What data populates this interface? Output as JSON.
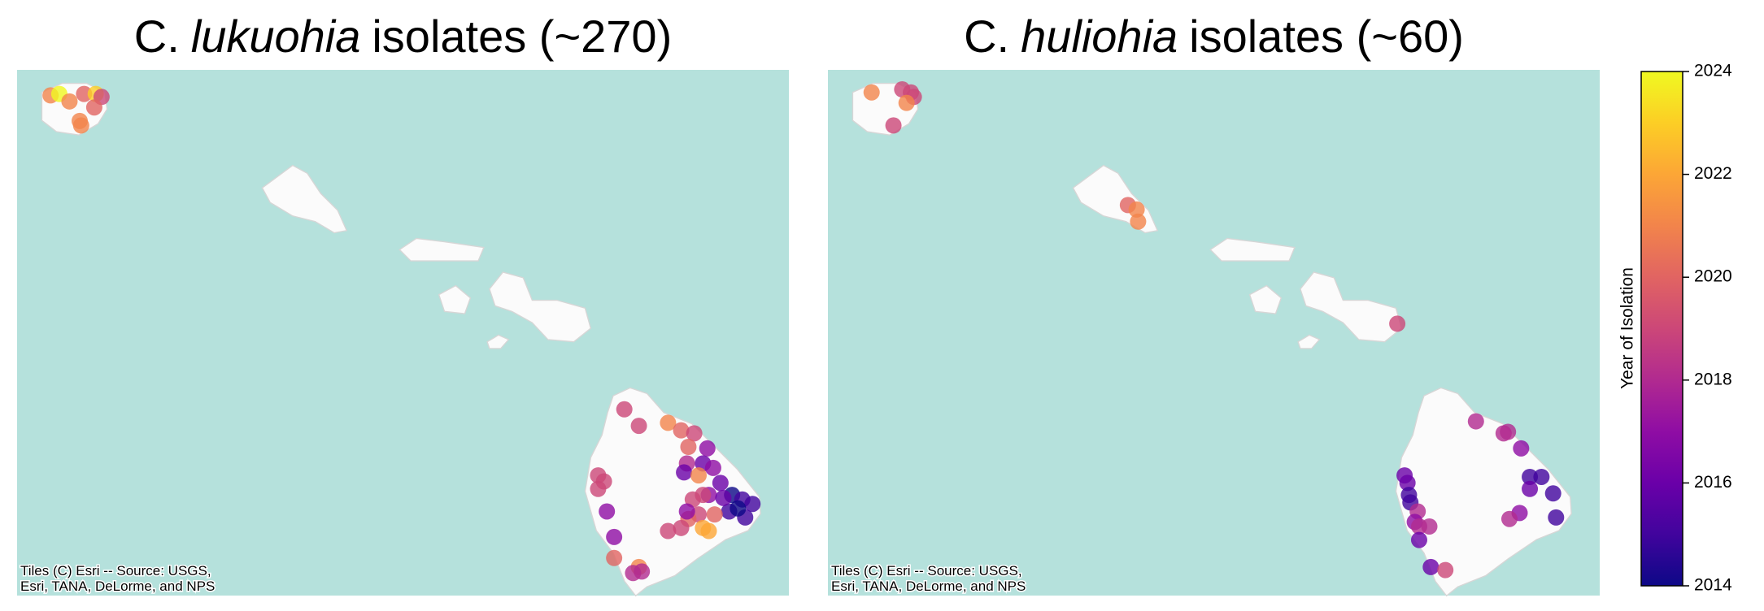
{
  "chart_data": [
    {
      "type": "scatter",
      "title": {
        "genus": "C.",
        "species": "lukuohia",
        "suffix": "isolates (~270)"
      },
      "attribution": [
        "Tiles (C) Esri -- Source: USGS,",
        "Esri, TANA, DeLorme, and NPS"
      ],
      "xlim": [
        -159.9,
        -154.6
      ],
      "ylim": [
        18.8,
        22.3
      ],
      "x": [
        -159.67,
        -159.61,
        -159.54,
        -159.44,
        -159.36,
        -159.32,
        -159.37,
        -159.46,
        -159.47,
        -155.73,
        -155.63,
        -155.43,
        -155.34,
        -155.25,
        -155.29,
        -155.3,
        -155.16,
        -155.19,
        -155.12,
        -155.32,
        -155.22,
        -155.07,
        -154.99,
        -154.92,
        -154.85,
        -154.9,
        -155.01,
        -155.15,
        -155.19,
        -155.26,
        -155.11,
        -155.22,
        -155.29,
        -155.19,
        -155.34,
        -155.43,
        -155.15,
        -155.3,
        -155.91,
        -155.87,
        -155.91,
        -155.85,
        -155.8,
        -155.8,
        -155.63,
        -155.61,
        -155.67,
        -155.05,
        -154.95
      ],
      "y": [
        22.13,
        22.14,
        22.09,
        22.14,
        22.14,
        22.12,
        22.05,
        21.93,
        21.96,
        20.04,
        19.93,
        19.95,
        19.9,
        19.88,
        19.79,
        19.68,
        19.78,
        19.68,
        19.65,
        19.62,
        19.6,
        19.55,
        19.47,
        19.44,
        19.41,
        19.32,
        19.36,
        19.47,
        19.47,
        19.44,
        19.34,
        19.34,
        19.31,
        19.25,
        19.25,
        19.23,
        19.23,
        19.36,
        19.6,
        19.56,
        19.51,
        19.36,
        19.19,
        19.05,
        18.99,
        18.96,
        18.95,
        19.45,
        19.38
      ],
      "values": [
        2021,
        2024,
        2021,
        2020,
        2023,
        2019,
        2020,
        2021,
        2021,
        2019,
        2019,
        2021,
        2020,
        2019,
        2020,
        2018,
        2017,
        2016,
        2017,
        2016,
        2021,
        2016,
        2014,
        2015,
        2015,
        2015,
        2015,
        2017,
        2019,
        2019,
        2020,
        2019,
        2020,
        2022,
        2019,
        2019,
        2022,
        2017,
        2019,
        2019,
        2019,
        2017,
        2017,
        2020,
        2021,
        2018,
        2018,
        2016,
        2014
      ]
    },
    {
      "type": "scatter",
      "title": {
        "genus": "C.",
        "species": "huliohia",
        "suffix": "isolates (~60)"
      },
      "attribution": [
        "Tiles (C) Esri -- Source: USGS,",
        "Esri, TANA, DeLorme, and NPS"
      ],
      "xlim": [
        -159.9,
        -154.6
      ],
      "ylim": [
        18.8,
        22.3
      ],
      "x": [
        -159.6,
        -159.39,
        -159.33,
        -159.31,
        -159.36,
        -159.45,
        -157.84,
        -157.78,
        -157.77,
        -155.99,
        -155.45,
        -155.26,
        -155.23,
        -155.14,
        -155.08,
        -155.0,
        -155.08,
        -154.92,
        -154.9,
        -155.15,
        -155.22,
        -155.94,
        -155.92,
        -155.91,
        -155.9,
        -155.85,
        -155.87,
        -155.84,
        -155.77,
        -155.84,
        -155.76,
        -155.66
      ],
      "y": [
        22.15,
        22.17,
        22.15,
        22.12,
        22.08,
        21.93,
        21.4,
        21.37,
        21.29,
        20.61,
        19.96,
        19.88,
        19.89,
        19.78,
        19.59,
        19.59,
        19.51,
        19.48,
        19.32,
        19.35,
        19.31,
        19.6,
        19.55,
        19.47,
        19.42,
        19.36,
        19.29,
        19.26,
        19.26,
        19.17,
        18.99,
        18.97
      ],
      "values": [
        2021,
        2019,
        2019,
        2019,
        2021,
        2019,
        2020,
        2021,
        2021,
        2019,
        2018,
        2018,
        2018,
        2017,
        2015,
        2015,
        2016,
        2015,
        2015,
        2017,
        2018,
        2016,
        2016,
        2015,
        2015,
        2018,
        2017,
        2018,
        2018,
        2016,
        2016,
        2019
      ]
    }
  ],
  "colorbar": {
    "label": "Year of Isolation",
    "lim": [
      2014,
      2024
    ],
    "ticks": [
      2014,
      2016,
      2018,
      2020,
      2022,
      2024
    ],
    "colormap": "plasma",
    "colors": [
      "#0d0887",
      "#41049d",
      "#6a00a8",
      "#8f0da4",
      "#b12a90",
      "#cc4778",
      "#e16462",
      "#f2844b",
      "#fca636",
      "#fcce25",
      "#f0f921"
    ]
  }
}
